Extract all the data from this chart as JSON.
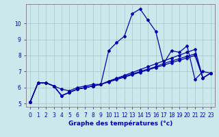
{
  "xlabel": "Graphe des températures (°c)",
  "background_color": "#cce8ec",
  "plot_bg_color": "#cce8ec",
  "grid_color": "#aacccc",
  "line_color": "#0000aa",
  "xlim": [
    -0.5,
    23.5
  ],
  "ylim": [
    4.8,
    11.2
  ],
  "yticks": [
    5,
    6,
    7,
    8,
    9,
    10
  ],
  "xticks": [
    0,
    1,
    2,
    3,
    4,
    5,
    6,
    7,
    8,
    9,
    10,
    11,
    12,
    13,
    14,
    15,
    16,
    17,
    18,
    19,
    20,
    21,
    22,
    23
  ],
  "hours": [
    0,
    1,
    2,
    3,
    4,
    5,
    6,
    7,
    8,
    9,
    10,
    11,
    12,
    13,
    14,
    15,
    16,
    17,
    18,
    19,
    20,
    21,
    22,
    23
  ],
  "temps_main": [
    5.1,
    6.3,
    6.3,
    6.1,
    5.9,
    5.8,
    6.0,
    6.1,
    6.2,
    6.2,
    8.3,
    8.8,
    9.2,
    10.6,
    10.9,
    10.2,
    9.5,
    7.5,
    8.3,
    8.2,
    8.6,
    6.5,
    7.0,
    6.9
  ],
  "temps_line2": [
    5.1,
    6.3,
    6.3,
    6.1,
    5.5,
    5.7,
    5.9,
    6.0,
    6.1,
    6.2,
    6.4,
    6.55,
    6.7,
    6.85,
    7.0,
    7.15,
    7.3,
    7.5,
    7.65,
    7.8,
    7.95,
    8.1,
    6.6,
    6.9
  ],
  "temps_line3": [
    5.1,
    6.3,
    6.3,
    6.1,
    5.5,
    5.7,
    5.9,
    6.0,
    6.1,
    6.2,
    6.4,
    6.58,
    6.76,
    6.94,
    7.12,
    7.3,
    7.48,
    7.66,
    7.84,
    8.02,
    8.2,
    8.38,
    6.6,
    6.9
  ],
  "temps_line4": [
    5.1,
    6.3,
    6.3,
    6.1,
    5.5,
    5.7,
    5.9,
    6.0,
    6.1,
    6.2,
    6.35,
    6.5,
    6.65,
    6.8,
    6.95,
    7.1,
    7.25,
    7.4,
    7.55,
    7.7,
    7.85,
    8.0,
    6.6,
    6.9
  ]
}
